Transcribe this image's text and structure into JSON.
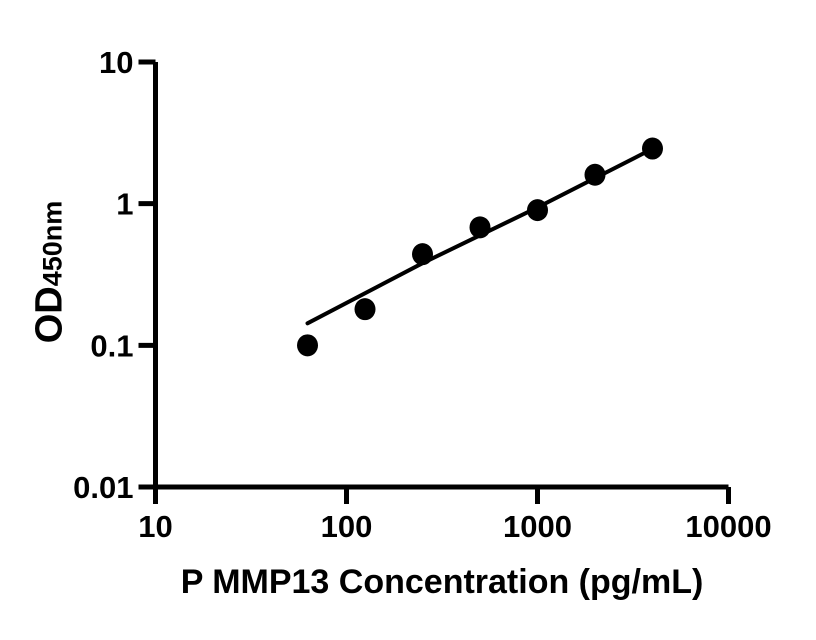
{
  "chart_data": {
    "type": "scatter",
    "title": "",
    "xlabel": "P MMP13 Concentration (pg/mL)",
    "ylabel": "OD450nm",
    "ylabel_main": "OD",
    "ylabel_sub": "450nm",
    "x_scale": "log",
    "y_scale": "log",
    "xlim": [
      10,
      10000
    ],
    "ylim": [
      0.01,
      10
    ],
    "x_ticks": [
      10,
      100,
      1000,
      10000
    ],
    "x_tick_labels": [
      "10",
      "100",
      "1000",
      "10000"
    ],
    "y_ticks": [
      10,
      1,
      0.1,
      0.01
    ],
    "y_tick_labels": [
      "10",
      "1",
      "0.1",
      "0.01"
    ],
    "grid": false,
    "legend": false,
    "colors": {
      "background": "#ffffff",
      "axis": "#000000",
      "marker": "#000000",
      "fit_line": "#000000"
    },
    "series": [
      {
        "name": "standard points",
        "type": "scatter",
        "marker": "filled-circle",
        "color": "#000000",
        "x": [
          62.5,
          125,
          250,
          500,
          1000,
          2000,
          4000
        ],
        "y": [
          0.1,
          0.18,
          0.44,
          0.68,
          0.9,
          1.6,
          2.45
        ]
      },
      {
        "name": "fit line",
        "type": "line",
        "color": "#000000",
        "x": [
          62.5,
          250,
          1000,
          4000
        ],
        "y": [
          0.143,
          0.38,
          0.94,
          2.44
        ]
      }
    ]
  }
}
